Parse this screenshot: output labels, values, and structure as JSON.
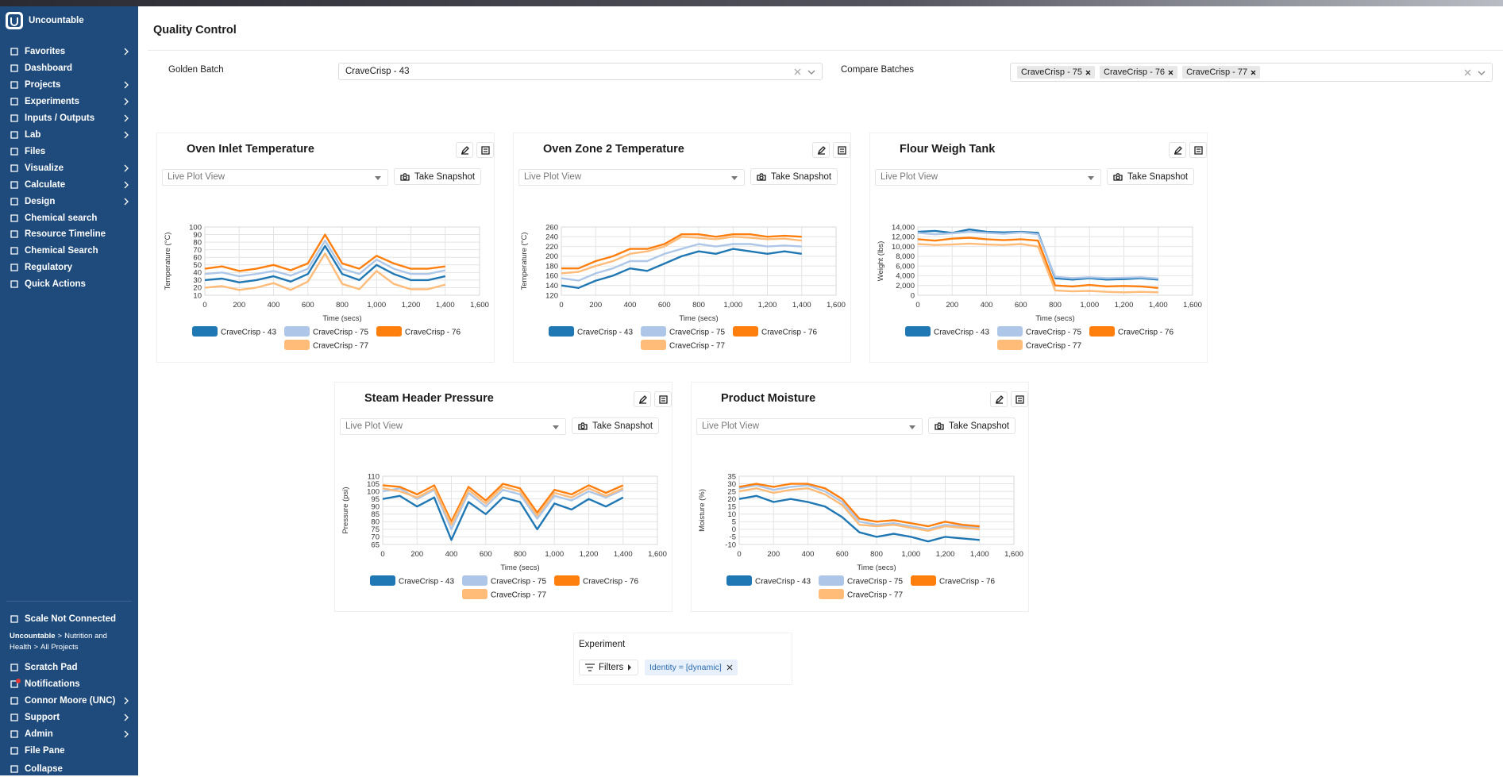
{
  "app": {
    "name": "Uncountable"
  },
  "nav": [
    {
      "label": "Favorites",
      "submenu": true
    },
    {
      "label": "Dashboard",
      "submenu": false
    },
    {
      "label": "Projects",
      "submenu": true
    },
    {
      "label": "Experiments",
      "submenu": true
    },
    {
      "label": "Inputs / Outputs",
      "submenu": true
    },
    {
      "label": "Lab",
      "submenu": true
    },
    {
      "label": "Files",
      "submenu": false
    },
    {
      "label": "Visualize",
      "submenu": true
    },
    {
      "label": "Calculate",
      "submenu": true
    },
    {
      "label": "Design",
      "submenu": true
    },
    {
      "label": "Chemical search",
      "submenu": false
    },
    {
      "label": "Resource Timeline",
      "submenu": false
    },
    {
      "label": "Chemical Search",
      "submenu": false
    },
    {
      "label": "Regulatory",
      "submenu": false
    },
    {
      "label": "Quick Actions",
      "submenu": false
    }
  ],
  "footer": {
    "status": "Scale Not Connected",
    "breadcrumb": [
      "Uncountable",
      "Nutrition and Health",
      "All Projects"
    ],
    "breadcrumb_separator": ">",
    "items": [
      {
        "label": "Scratch Pad",
        "submenu": false
      },
      {
        "label": "Notifications",
        "submenu": false
      },
      {
        "label": "Connor Moore (UNC)",
        "submenu": true
      },
      {
        "label": "Support",
        "submenu": true
      },
      {
        "label": "Admin",
        "submenu": true
      },
      {
        "label": "File Pane",
        "submenu": false
      },
      {
        "label": "Collapse",
        "submenu": false
      }
    ]
  },
  "header": {
    "title": "Quality Control"
  },
  "golden_batch": {
    "label": "Golden Batch",
    "value": "CraveCrisp - 43"
  },
  "compare_batches": {
    "label": "Compare Batches",
    "values": [
      "CraveCrisp - 75",
      "CraveCrisp - 76",
      "CraveCrisp - 77"
    ]
  },
  "card_controls": {
    "view": "Live Plot View",
    "snapshot": "Take Snapshot"
  },
  "chart_data": [
    {
      "type": "line",
      "title": "Oven Inlet Temperature",
      "xlabel": "Time (secs)",
      "ylabel": "Temperature (°C)",
      "grid": true,
      "x": [
        0,
        100,
        200,
        300,
        400,
        500,
        600,
        700,
        800,
        900,
        1000,
        1100,
        1200,
        1300,
        1400
      ],
      "xlim": [
        0,
        1600
      ],
      "xticks": [
        0,
        200,
        400,
        600,
        800,
        {
          "value": 1000,
          "label": "1,000"
        },
        {
          "value": 1200,
          "label": "1,200"
        },
        {
          "value": 1400,
          "label": "1,400"
        },
        {
          "value": 1600,
          "label": "1,600"
        }
      ],
      "ylim": [
        10,
        100
      ],
      "yticks": [
        10,
        20,
        30,
        40,
        50,
        60,
        70,
        80,
        90,
        100
      ],
      "series": [
        {
          "name": "CraveCrisp - 43",
          "color": "#1f77b4",
          "values": [
            30,
            32,
            27,
            30,
            35,
            28,
            38,
            75,
            38,
            30,
            50,
            38,
            30,
            30,
            35
          ]
        },
        {
          "name": "CraveCrisp - 75",
          "color": "#aec7e8",
          "values": [
            38,
            40,
            35,
            38,
            42,
            36,
            45,
            82,
            45,
            38,
            57,
            45,
            38,
            38,
            43
          ]
        },
        {
          "name": "CraveCrisp - 76",
          "color": "#ff7f0e",
          "values": [
            45,
            48,
            42,
            45,
            50,
            43,
            52,
            90,
            52,
            45,
            62,
            52,
            45,
            45,
            48
          ]
        },
        {
          "name": "CraveCrisp - 77",
          "color": "#ffbb78",
          "values": [
            20,
            22,
            17,
            20,
            26,
            17,
            28,
            65,
            25,
            18,
            42,
            25,
            18,
            18,
            24
          ]
        }
      ]
    },
    {
      "type": "line",
      "title": "Oven Zone 2 Temperature",
      "xlabel": "Time (secs)",
      "ylabel": "Temperature (°C)",
      "grid": true,
      "x": [
        0,
        100,
        200,
        300,
        400,
        500,
        600,
        700,
        800,
        900,
        1000,
        1100,
        1200,
        1300,
        1400
      ],
      "xlim": [
        0,
        1600
      ],
      "xticks": [
        0,
        200,
        400,
        600,
        800,
        {
          "value": 1000,
          "label": "1,000"
        },
        {
          "value": 1200,
          "label": "1,200"
        },
        {
          "value": 1400,
          "label": "1,400"
        },
        {
          "value": 1600,
          "label": "1,600"
        }
      ],
      "ylim": [
        120,
        260
      ],
      "yticks": [
        120,
        140,
        160,
        180,
        200,
        220,
        240,
        260
      ],
      "series": [
        {
          "name": "CraveCrisp - 43",
          "color": "#1f77b4",
          "values": [
            140,
            135,
            150,
            160,
            175,
            170,
            185,
            200,
            210,
            205,
            215,
            210,
            205,
            210,
            205
          ]
        },
        {
          "name": "CraveCrisp - 75",
          "color": "#aec7e8",
          "values": [
            155,
            150,
            165,
            175,
            190,
            190,
            205,
            215,
            225,
            220,
            225,
            225,
            220,
            222,
            220
          ]
        },
        {
          "name": "CraveCrisp - 76",
          "color": "#ff7f0e",
          "values": [
            175,
            175,
            190,
            200,
            215,
            215,
            225,
            245,
            245,
            240,
            245,
            245,
            240,
            242,
            240
          ]
        },
        {
          "name": "CraveCrisp - 77",
          "color": "#ffbb78",
          "values": [
            165,
            168,
            180,
            190,
            205,
            210,
            220,
            240,
            238,
            235,
            240,
            238,
            235,
            236,
            232
          ]
        }
      ]
    },
    {
      "type": "line",
      "title": "Flour Weigh Tank",
      "xlabel": "Time (secs)",
      "ylabel": "Weight (lbs)",
      "grid": true,
      "x": [
        0,
        100,
        200,
        300,
        400,
        500,
        600,
        700,
        800,
        900,
        1000,
        1100,
        1200,
        1300,
        1400
      ],
      "xlim": [
        0,
        1600
      ],
      "xticks": [
        0,
        200,
        400,
        600,
        800,
        {
          "value": 1000,
          "label": "1,000"
        },
        {
          "value": 1200,
          "label": "1,200"
        },
        {
          "value": 1400,
          "label": "1,400"
        },
        {
          "value": 1600,
          "label": "1,600"
        }
      ],
      "ylim": [
        0,
        14000
      ],
      "yticks": [
        0,
        {
          "value": 2000,
          "label": "2,000"
        },
        {
          "value": 4000,
          "label": "4,000"
        },
        {
          "value": 6000,
          "label": "6,000"
        },
        {
          "value": 8000,
          "label": "8,000"
        },
        {
          "value": 10000,
          "label": "10,000"
        },
        {
          "value": 12000,
          "label": "12,000"
        },
        {
          "value": 14000,
          "label": "14,000"
        }
      ],
      "series": [
        {
          "name": "CraveCrisp - 43",
          "color": "#1f77b4",
          "values": [
            13000,
            13200,
            12800,
            13500,
            13000,
            12900,
            13000,
            12800,
            3500,
            3200,
            3500,
            3200,
            3300,
            3500,
            3200
          ]
        },
        {
          "name": "CraveCrisp - 75",
          "color": "#aec7e8",
          "values": [
            12800,
            12500,
            12700,
            13000,
            12800,
            12600,
            12900,
            12500,
            3800,
            3500,
            3700,
            3500,
            3600,
            3700,
            3400
          ]
        },
        {
          "name": "CraveCrisp - 76",
          "color": "#ff7f0e",
          "values": [
            11500,
            11200,
            11600,
            11800,
            11500,
            11300,
            11500,
            11200,
            2000,
            1800,
            2100,
            1800,
            1900,
            1800,
            1500
          ]
        },
        {
          "name": "CraveCrisp - 77",
          "color": "#ffbb78",
          "values": [
            10500,
            10300,
            10400,
            10600,
            10400,
            10300,
            10500,
            10000,
            1000,
            800,
            900,
            700,
            600,
            700,
            600
          ]
        }
      ]
    },
    {
      "type": "line",
      "title": "Steam Header Pressure",
      "xlabel": "Time (secs)",
      "ylabel": "Pressure (psi)",
      "grid": true,
      "x": [
        0,
        100,
        200,
        300,
        400,
        500,
        600,
        700,
        800,
        900,
        1000,
        1100,
        1200,
        1300,
        1400
      ],
      "xlim": [
        0,
        1600
      ],
      "xticks": [
        0,
        200,
        400,
        600,
        800,
        {
          "value": 1000,
          "label": "1,000"
        },
        {
          "value": 1200,
          "label": "1,200"
        },
        {
          "value": 1400,
          "label": "1,400"
        },
        {
          "value": 1600,
          "label": "1,600"
        }
      ],
      "ylim": [
        65,
        110
      ],
      "yticks": [
        65,
        70,
        75,
        80,
        85,
        90,
        95,
        100,
        105,
        110
      ],
      "series": [
        {
          "name": "CraveCrisp - 43",
          "color": "#1f77b4",
          "values": [
            95,
            97,
            90,
            96,
            68,
            93,
            85,
            96,
            93,
            75,
            92,
            88,
            95,
            90,
            96
          ]
        },
        {
          "name": "CraveCrisp - 75",
          "color": "#aec7e8",
          "values": [
            100,
            102,
            95,
            101,
            75,
            99,
            90,
            101,
            98,
            82,
            97,
            94,
            100,
            96,
            101
          ]
        },
        {
          "name": "CraveCrisp - 76",
          "color": "#ff7f0e",
          "values": [
            104,
            103,
            98,
            104,
            80,
            103,
            94,
            105,
            102,
            86,
            101,
            98,
            104,
            99,
            104
          ]
        },
        {
          "name": "CraveCrisp - 77",
          "color": "#ffbb78",
          "values": [
            102,
            100,
            96,
            102,
            78,
            101,
            92,
            103,
            100,
            84,
            99,
            96,
            102,
            97,
            102
          ]
        }
      ]
    },
    {
      "type": "line",
      "title": "Product Moisture",
      "xlabel": "Time (secs)",
      "ylabel": "Moisture (%)",
      "grid": true,
      "x": [
        0,
        100,
        200,
        300,
        400,
        500,
        600,
        700,
        800,
        900,
        1000,
        1100,
        1200,
        1300,
        1400
      ],
      "xlim": [
        0,
        1600
      ],
      "xticks": [
        0,
        200,
        400,
        600,
        800,
        {
          "value": 1000,
          "label": "1,000"
        },
        {
          "value": 1200,
          "label": "1,200"
        },
        {
          "value": 1400,
          "label": "1,400"
        },
        {
          "value": 1600,
          "label": "1,600"
        }
      ],
      "ylim": [
        -10,
        35
      ],
      "yticks": [
        -10,
        -5,
        0,
        5,
        10,
        15,
        20,
        25,
        30,
        35
      ],
      "series": [
        {
          "name": "CraveCrisp - 43",
          "color": "#1f77b4",
          "values": [
            20,
            22,
            18,
            20,
            18,
            15,
            8,
            -2,
            -5,
            -3,
            -5,
            -8,
            -5,
            -6,
            -7
          ]
        },
        {
          "name": "CraveCrisp - 75",
          "color": "#aec7e8",
          "values": [
            27,
            29,
            26,
            28,
            29,
            25,
            18,
            5,
            3,
            4,
            2,
            0,
            3,
            2,
            1
          ]
        },
        {
          "name": "CraveCrisp - 76",
          "color": "#ff7f0e",
          "values": [
            28,
            30,
            28,
            30,
            30,
            27,
            20,
            7,
            5,
            6,
            4,
            2,
            5,
            3,
            2
          ]
        },
        {
          "name": "CraveCrisp - 77",
          "color": "#ffbb78",
          "values": [
            25,
            27,
            24,
            26,
            27,
            23,
            16,
            3,
            2,
            3,
            1,
            -1,
            2,
            1,
            0
          ]
        }
      ]
    }
  ],
  "experiment": {
    "title": "Experiment",
    "filters_button": "Filters",
    "filter_chip": "Identity = [dynamic]"
  }
}
